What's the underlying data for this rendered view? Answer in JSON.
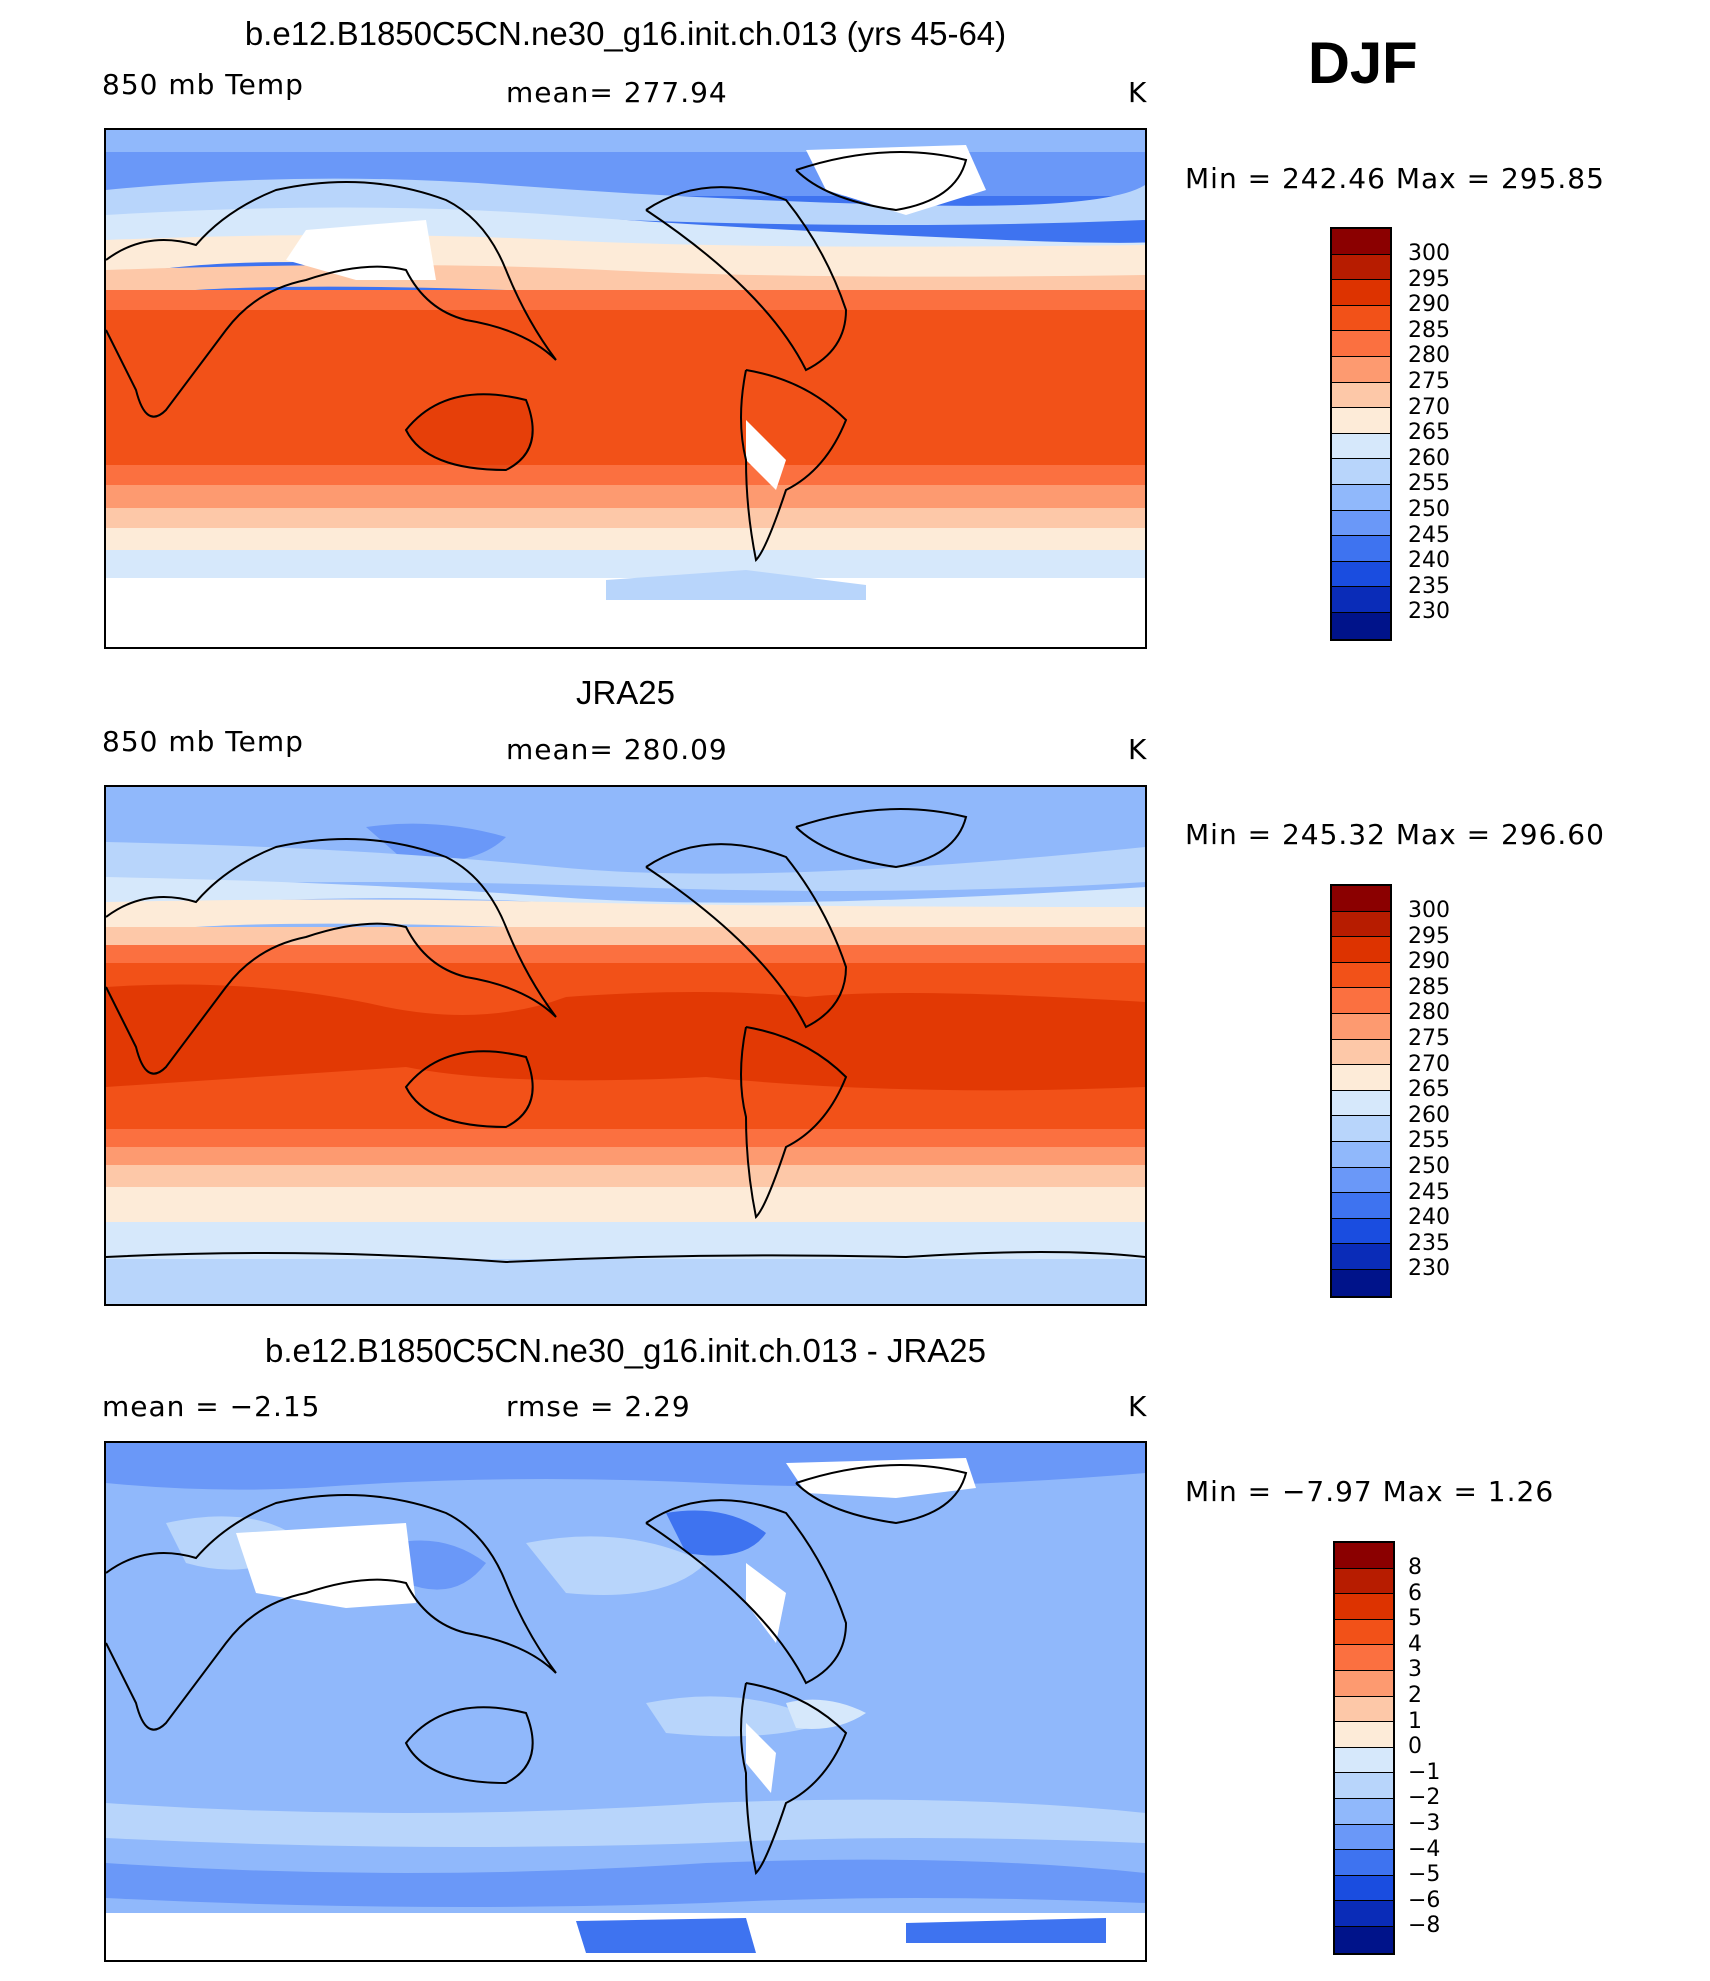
{
  "season": "DJF",
  "units": "K",
  "color_scale": {
    "temp": {
      "colors": [
        "#8b0000",
        "#b71c00",
        "#dd3300",
        "#f25118",
        "#fb7040",
        "#fd9a70",
        "#fdc8a8",
        "#fdebd8",
        "#d6e8fb",
        "#b8d5fb",
        "#90b8fb",
        "#6a98f8",
        "#3e73f0",
        "#1a4de0",
        "#0a2cb8",
        "#00138a"
      ],
      "labels": [
        "300",
        "295",
        "290",
        "285",
        "280",
        "275",
        "270",
        "265",
        "260",
        "255",
        "250",
        "245",
        "240",
        "235",
        "230"
      ]
    },
    "diff": {
      "colors": [
        "#8b0000",
        "#b71c00",
        "#dd3300",
        "#f25118",
        "#fb7040",
        "#fd9a70",
        "#fdc8a8",
        "#fdebd8",
        "#d6e8fb",
        "#b8d5fb",
        "#90b8fb",
        "#6a98f8",
        "#3e73f0",
        "#1a4de0",
        "#0a2cb8",
        "#00138a"
      ],
      "labels": [
        "8",
        "6",
        "5",
        "4",
        "3",
        "2",
        "1",
        "0",
        "−1",
        "−2",
        "−3",
        "−4",
        "−5",
        "−6",
        "−8"
      ]
    }
  },
  "panels": [
    {
      "title": "b.e12.B1850C5CN.ne30_g16.init.ch.013 (yrs 45-64)",
      "left_label": "850 mb Temp",
      "center_label": "mean=  277.94",
      "units": "K",
      "minmax": "Min  =  242.46  Max  =  295.85",
      "map_kind": "temp"
    },
    {
      "title": "JRA25",
      "left_label": "850 mb Temp",
      "center_label": "mean=  280.09",
      "units": "K",
      "minmax": "Min  =  245.32  Max  =  296.60",
      "map_kind": "temp"
    },
    {
      "title": "b.e12.B1850C5CN.ne30_g16.init.ch.013 - JRA25",
      "left_label": "mean  =    −2.15",
      "center_label": "rmse  =     2.29",
      "units": "K",
      "minmax": "Min  =    −7.97  Max  =     1.26",
      "map_kind": "diff"
    }
  ]
}
